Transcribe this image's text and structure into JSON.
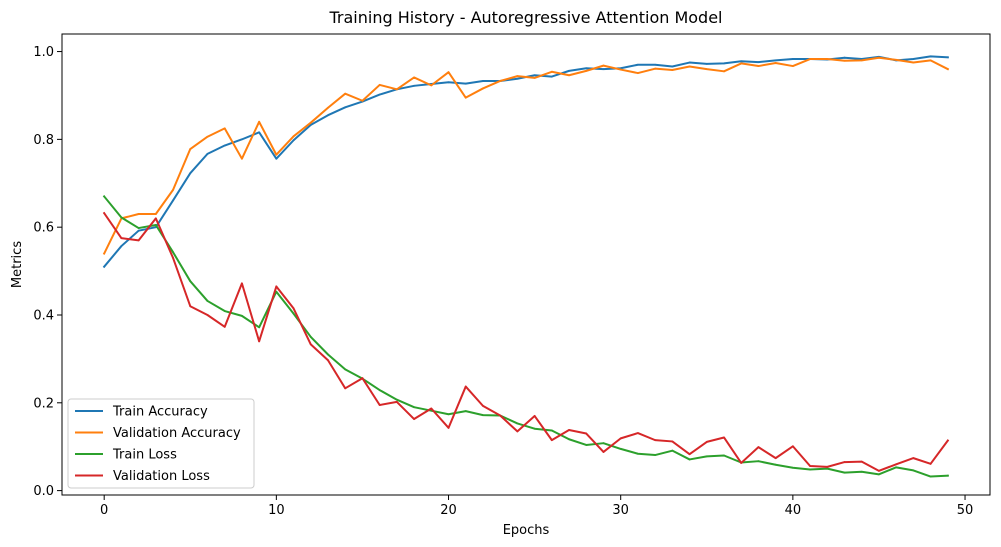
{
  "chart_data": {
    "type": "line",
    "title": "Training History - Autoregressive Attention Model",
    "xlabel": "Epochs",
    "ylabel": "Metrics",
    "xlim": [
      -2.45,
      51.45
    ],
    "ylim": [
      -0.01,
      1.04
    ],
    "xticks": [
      0,
      10,
      20,
      30,
      40,
      50
    ],
    "yticks": [
      0.0,
      0.2,
      0.4,
      0.6,
      0.8,
      1.0
    ],
    "xtick_labels": [
      "0",
      "10",
      "20",
      "30",
      "40",
      "50"
    ],
    "ytick_labels": [
      "0.0",
      "0.2",
      "0.4",
      "0.6",
      "0.8",
      "1.0"
    ],
    "grid": false,
    "legend_position": "lower-left",
    "x": [
      0,
      1,
      2,
      3,
      4,
      5,
      6,
      7,
      8,
      9,
      10,
      11,
      12,
      13,
      14,
      15,
      16,
      17,
      18,
      19,
      20,
      21,
      22,
      23,
      24,
      25,
      26,
      27,
      28,
      29,
      30,
      31,
      32,
      33,
      34,
      35,
      36,
      37,
      38,
      39,
      40,
      41,
      42,
      43,
      44,
      45,
      46,
      47,
      48,
      49
    ],
    "series": [
      {
        "name": "Train Accuracy",
        "color": "#1f77b4",
        "values": [
          0.51,
          0.557,
          0.592,
          0.6,
          0.661,
          0.723,
          0.767,
          0.786,
          0.8,
          0.816,
          0.756,
          0.798,
          0.833,
          0.855,
          0.873,
          0.886,
          0.902,
          0.914,
          0.922,
          0.926,
          0.93,
          0.927,
          0.933,
          0.933,
          0.938,
          0.946,
          0.943,
          0.956,
          0.962,
          0.96,
          0.962,
          0.97,
          0.97,
          0.966,
          0.975,
          0.972,
          0.973,
          0.978,
          0.976,
          0.98,
          0.983,
          0.983,
          0.982,
          0.986,
          0.983,
          0.988,
          0.98,
          0.983,
          0.989,
          0.987
        ]
      },
      {
        "name": "Validation Accuracy",
        "color": "#ff7f0e",
        "values": [
          0.54,
          0.62,
          0.63,
          0.63,
          0.685,
          0.778,
          0.806,
          0.825,
          0.756,
          0.84,
          0.765,
          0.807,
          0.838,
          0.872,
          0.904,
          0.888,
          0.924,
          0.914,
          0.941,
          0.923,
          0.953,
          0.895,
          0.916,
          0.933,
          0.944,
          0.94,
          0.954,
          0.946,
          0.956,
          0.968,
          0.959,
          0.951,
          0.961,
          0.958,
          0.966,
          0.96,
          0.955,
          0.973,
          0.967,
          0.974,
          0.967,
          0.983,
          0.983,
          0.979,
          0.98,
          0.986,
          0.981,
          0.975,
          0.98,
          0.96
        ]
      },
      {
        "name": "Train Loss",
        "color": "#2ca02c",
        "values": [
          0.67,
          0.622,
          0.598,
          0.605,
          0.543,
          0.477,
          0.432,
          0.409,
          0.398,
          0.372,
          0.453,
          0.403,
          0.35,
          0.31,
          0.276,
          0.255,
          0.229,
          0.207,
          0.19,
          0.182,
          0.174,
          0.181,
          0.172,
          0.171,
          0.153,
          0.141,
          0.137,
          0.117,
          0.104,
          0.108,
          0.095,
          0.084,
          0.081,
          0.091,
          0.071,
          0.078,
          0.08,
          0.064,
          0.067,
          0.059,
          0.052,
          0.048,
          0.05,
          0.041,
          0.043,
          0.037,
          0.053,
          0.046,
          0.032,
          0.034
        ]
      },
      {
        "name": "Validation Loss",
        "color": "#d62728",
        "values": [
          0.632,
          0.575,
          0.57,
          0.62,
          0.53,
          0.42,
          0.4,
          0.373,
          0.472,
          0.34,
          0.465,
          0.415,
          0.333,
          0.297,
          0.233,
          0.256,
          0.195,
          0.202,
          0.163,
          0.187,
          0.143,
          0.237,
          0.193,
          0.171,
          0.135,
          0.17,
          0.115,
          0.138,
          0.13,
          0.088,
          0.119,
          0.131,
          0.115,
          0.112,
          0.083,
          0.111,
          0.121,
          0.063,
          0.099,
          0.074,
          0.101,
          0.056,
          0.054,
          0.065,
          0.066,
          0.045,
          0.06,
          0.074,
          0.061,
          0.114
        ]
      }
    ]
  }
}
